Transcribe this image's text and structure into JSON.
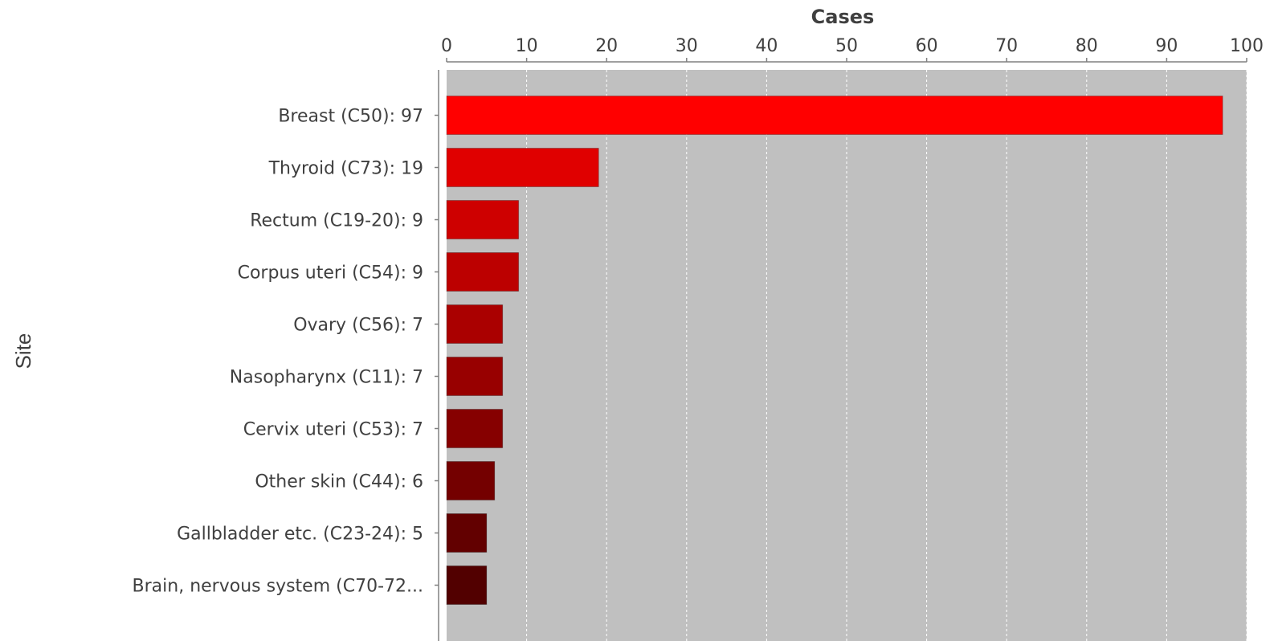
{
  "chart_data": {
    "type": "bar",
    "orientation": "horizontal",
    "xlabel": "Cases",
    "ylabel": "Site",
    "xlim": [
      0,
      100
    ],
    "x_ticks": [
      0,
      10,
      20,
      30,
      40,
      50,
      60,
      70,
      80,
      90,
      100
    ],
    "grid": true,
    "categories": [
      "Breast (C50): 97",
      "Thyroid (C73): 19",
      "Rectum (C19-20): 9",
      "Corpus uteri (C54): 9",
      "Ovary (C56): 7",
      "Nasopharynx (C11): 7",
      "Cervix uteri (C53): 7",
      "Other skin (C44): 6",
      "Gallbladder etc. (C23-24): 5",
      "Brain, nervous system (C70-72..."
    ],
    "values": [
      97,
      19,
      9,
      9,
      7,
      7,
      7,
      6,
      5,
      5
    ],
    "colors": [
      "#ff0000",
      "#e00000",
      "#ce0000",
      "#bc0000",
      "#aa0000",
      "#980000",
      "#860000",
      "#740000",
      "#620000",
      "#520000"
    ],
    "plot_background": "#c0c0c0"
  }
}
